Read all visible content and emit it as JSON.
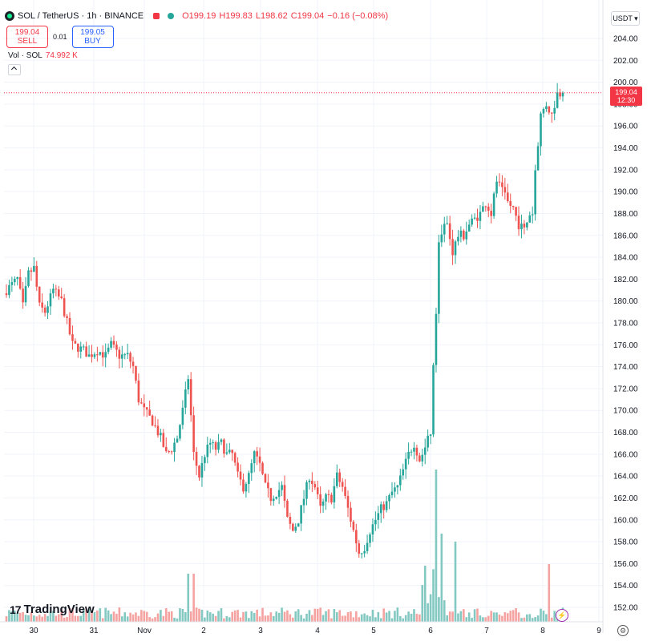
{
  "header": {
    "title": "SOL / TetherUS · 1h · BINANCE",
    "open": "O199.19",
    "high": "H199.83",
    "low": "L198.62",
    "close": "C199.04",
    "change": "−0.16 (−0.08%)"
  },
  "trade": {
    "sell_price": "199.04",
    "sell_label": "SELL",
    "spread": "0.01",
    "buy_price": "199.05",
    "buy_label": "BUY"
  },
  "volume": {
    "label": "Vol · SOL",
    "value": "74.992 K"
  },
  "currency_button": "USDT ▾",
  "price_tag": {
    "price": "199.04",
    "countdown": "12:30"
  },
  "logo": {
    "text": "TradingView",
    "mark": "17"
  },
  "icons": {
    "bolt": "⚡",
    "settings": "⚙"
  },
  "colors": {
    "up": "#26a69a",
    "down": "#ef5350",
    "up_vol": "#83c8c1",
    "down_vol": "#f5a3a1",
    "last_price": "#f23645"
  },
  "chart_data": {
    "type": "candlestick",
    "symbol": "SOL/USDT",
    "interval": "1h",
    "x_ticks": [
      "30",
      "31",
      "Nov",
      "2",
      "3",
      "4",
      "5",
      "6",
      "7",
      "8",
      "9"
    ],
    "y_ticks": [
      152,
      154,
      156,
      158,
      160,
      162,
      164,
      166,
      168,
      170,
      172,
      174,
      176,
      178,
      180,
      182,
      184,
      186,
      188,
      190,
      192,
      194,
      196,
      198,
      200,
      202,
      204
    ],
    "ylim": [
      150.5,
      205.5
    ],
    "last_price": 199.04,
    "grid": true,
    "close_path": [
      [
        0,
        181
      ],
      [
        4,
        182
      ],
      [
        6,
        179.5
      ],
      [
        8,
        182.5
      ],
      [
        10,
        183
      ],
      [
        12,
        179.5
      ],
      [
        14,
        179
      ],
      [
        17,
        181
      ],
      [
        20,
        180
      ],
      [
        24,
        176
      ],
      [
        28,
        175.5
      ],
      [
        30,
        175
      ],
      [
        33,
        175.5
      ],
      [
        36,
        175
      ],
      [
        38,
        176
      ],
      [
        41,
        175
      ],
      [
        44,
        175
      ],
      [
        46,
        174
      ],
      [
        48,
        171
      ],
      [
        50,
        170
      ],
      [
        53,
        169
      ],
      [
        56,
        167.5
      ],
      [
        58,
        166
      ],
      [
        60,
        166.5
      ],
      [
        62,
        167.5
      ],
      [
        64,
        170
      ],
      [
        66,
        173
      ],
      [
        68,
        166
      ],
      [
        70,
        164
      ],
      [
        72,
        166
      ],
      [
        74,
        167
      ],
      [
        76,
        166.5
      ],
      [
        78,
        167
      ],
      [
        80,
        166
      ],
      [
        82,
        166
      ],
      [
        84,
        164
      ],
      [
        86,
        163
      ],
      [
        88,
        164
      ],
      [
        90,
        166
      ],
      [
        92,
        165
      ],
      [
        94,
        163
      ],
      [
        96,
        162
      ],
      [
        98,
        162.5
      ],
      [
        100,
        163
      ],
      [
        102,
        160
      ],
      [
        104,
        159
      ],
      [
        106,
        160
      ],
      [
        108,
        162
      ],
      [
        110,
        164
      ],
      [
        112,
        163
      ],
      [
        114,
        161
      ],
      [
        116,
        162
      ],
      [
        118,
        162
      ],
      [
        120,
        164
      ],
      [
        122,
        163
      ],
      [
        124,
        161
      ],
      [
        126,
        159
      ],
      [
        128,
        157
      ],
      [
        130,
        157.5
      ],
      [
        132,
        159
      ],
      [
        134,
        160
      ],
      [
        136,
        161
      ],
      [
        138,
        161.5
      ],
      [
        140,
        162.5
      ],
      [
        142,
        163
      ],
      [
        144,
        164.5
      ],
      [
        146,
        166
      ],
      [
        148,
        167
      ],
      [
        150,
        165.5
      ],
      [
        152,
        166.5
      ],
      [
        154,
        168
      ],
      [
        155,
        174
      ],
      [
        156,
        179
      ],
      [
        157,
        185
      ],
      [
        158,
        186.5
      ],
      [
        160,
        187
      ],
      [
        162,
        184.5
      ],
      [
        164,
        186
      ],
      [
        166,
        186
      ],
      [
        168,
        187
      ],
      [
        170,
        187.5
      ],
      [
        172,
        188
      ],
      [
        174,
        189
      ],
      [
        176,
        188
      ],
      [
        178,
        191
      ],
      [
        180,
        190
      ],
      [
        182,
        189
      ],
      [
        184,
        188.5
      ],
      [
        186,
        187
      ],
      [
        188,
        186.5
      ],
      [
        190,
        188
      ],
      [
        191,
        188
      ],
      [
        192,
        192
      ],
      [
        194,
        197
      ],
      [
        196,
        198
      ],
      [
        198,
        197
      ],
      [
        200,
        199
      ],
      [
        201,
        199
      ],
      [
        202,
        199.04
      ]
    ]
  }
}
